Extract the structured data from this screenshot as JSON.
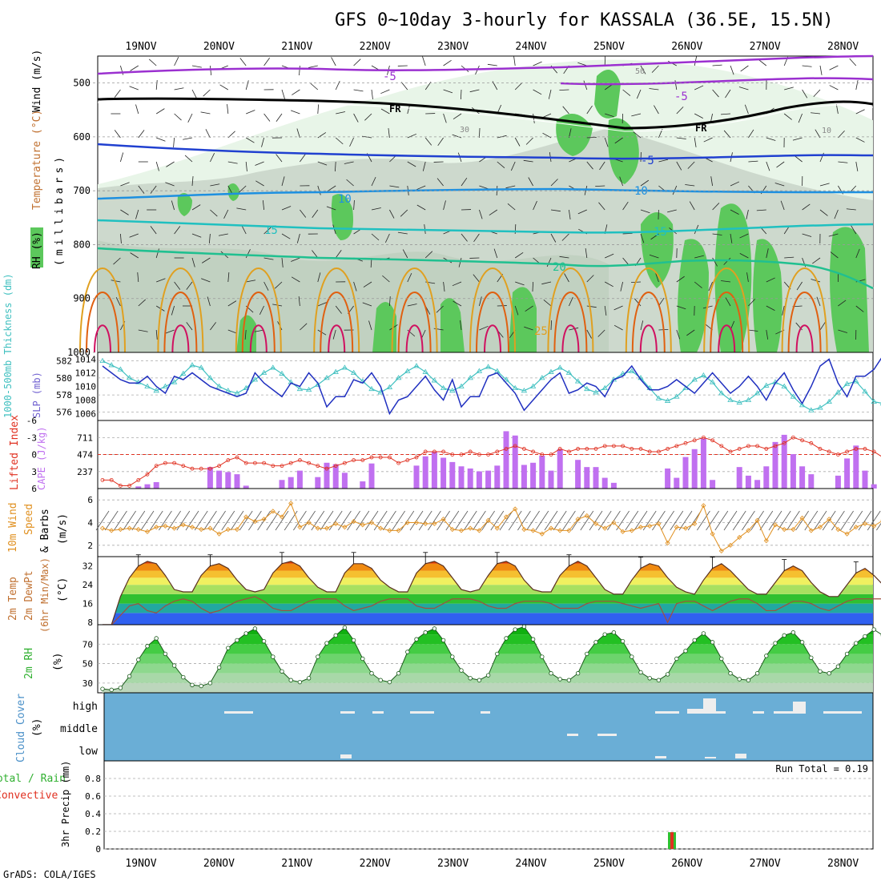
{
  "title": "GFS 0~10day 3-hourly for KASSALA (36.5E, 15.5N)",
  "footer": "GrADS: COLA/IGES",
  "dates": [
    "19NOV",
    "20NOV",
    "21NOV",
    "22NOV",
    "23NOV",
    "24NOV",
    "25NOV",
    "26NOV",
    "27NOV",
    "28NOV"
  ],
  "panels": {
    "upper": {
      "labels": {
        "rh": "RH (%)",
        "temp": "Temperature (°C)",
        "wind": "Wind (m/s)",
        "unit": "(millibars)"
      },
      "yticks": [
        "500",
        "600",
        "700",
        "800",
        "900",
        "1000"
      ],
      "contour_labels": {
        "m5a": "-5",
        "m5b": "-5",
        "fra": "FR",
        "frb": "FR",
        "m5c": "-5",
        "p10a": "10",
        "p10b": "10",
        "p15a": "15",
        "p15b": "15",
        "p20": "20",
        "p25": "25",
        "rh50": "50",
        "rh30": "30",
        "rh10": "10"
      },
      "colors": {
        "rh_light": "#e8f5e8",
        "rh_mid": "#c8d8c8",
        "rh_green": "#5cc85c",
        "t_m5": "#9b30d0",
        "t_fr": "#000000",
        "t_m5c": "#2040d0",
        "t_10": "#1e90e0",
        "t_15": "#20c0c0",
        "t_20": "#20c090",
        "t_25": "#e0a020",
        "t_30": "#e06010",
        "t_35": "#d01060"
      }
    },
    "thickness": {
      "labels": {
        "thickness": "1000-500mb Thickness (dm)",
        "slp": "SLP (mb)"
      },
      "left_ticks": [
        "582",
        "580",
        "578",
        "576"
      ],
      "right_ticks": [
        "1014",
        "1012",
        "1010",
        "1008",
        "1006"
      ],
      "colors": {
        "thickness": "#40c0c0",
        "slp": "#2030c0"
      }
    },
    "cape": {
      "labels": {
        "li": "Lifted Index",
        "cape": "CAPE (J/kg)"
      },
      "left_ticks": [
        "-6",
        "-3",
        "0",
        "3",
        "6"
      ],
      "right_ticks": [
        "711",
        "474",
        "237"
      ],
      "colors": {
        "cape": "#c070f0",
        "li": "#e03020"
      }
    },
    "wind10": {
      "labels": {
        "a": "10m Wind",
        "b": "Speed",
        "c": "& Barbs",
        "unit": "(m/s)"
      },
      "yticks": [
        "6",
        "4",
        "2"
      ],
      "colors": {
        "speed": "#e09020"
      }
    },
    "temp2m": {
      "labels": {
        "a": "2m Temp",
        "b": "2m DewPt",
        "c": "(6hr Min/Max)",
        "unit": "(°C)"
      },
      "yticks": [
        "32",
        "24",
        "16",
        "8"
      ]
    },
    "rh2m": {
      "labels": {
        "a": "2m RH",
        "unit": "(%)"
      },
      "yticks": [
        "70",
        "50",
        "30"
      ]
    },
    "cloud": {
      "labels": {
        "a": "Cloud Cover",
        "unit": "(%)"
      },
      "levels": [
        "high",
        "middle",
        "low"
      ],
      "colors": {
        "bg": "#6aaed6"
      }
    },
    "precip": {
      "labels": {
        "a": "Total / Rain",
        "b": "Convective",
        "c": "3hr Precip (mm)"
      },
      "yticks": [
        "0.8",
        "0.6",
        "0.4",
        "0.2",
        "0"
      ],
      "run_total": "Run Total = 0.19"
    }
  },
  "chart_data": [
    {
      "type": "line",
      "title": "1000-500mb Thickness / SLP",
      "x_start": "18NOV 15Z",
      "step_hours": 3,
      "series": [
        {
          "name": "1000-500mb Thickness (dm)",
          "values": [
            582,
            581.5,
            581,
            580,
            579.5,
            579,
            578.5,
            579,
            579.5,
            580.5,
            581.5,
            581.2,
            580,
            579,
            578.5,
            578.2,
            578.8,
            579.8,
            580.6,
            581.2,
            580.5,
            579.5,
            578.7,
            578.6,
            579.2,
            580,
            580.7,
            581.2,
            580.6,
            579.6,
            578.7,
            578.3,
            578.9,
            580,
            580.8,
            581.4,
            580.7,
            579.7,
            578.8,
            578.5,
            579,
            580,
            580.8,
            581.3,
            580.8,
            579.8,
            578.8,
            578.5,
            579,
            580,
            580.7,
            581.2,
            580.6,
            579.6,
            578.7,
            578.3,
            578.8,
            579.8,
            580.5,
            580.8,
            580,
            578.8,
            577.6,
            577.3,
            577.8,
            578.8,
            579.8,
            580.3,
            579.5,
            578.2,
            577.4,
            577.1,
            577.4,
            578.2,
            579.1,
            579.5,
            579,
            577.8,
            576.8,
            576.2,
            576.5,
            577.2,
            578.3,
            579.3,
            579.6,
            578.4,
            577.2,
            577
          ]
        },
        {
          "name": "SLP (mb)",
          "values": [
            1013,
            1012,
            1011,
            1010.5,
            1010.5,
            1011.5,
            1010,
            1009,
            1011.5,
            1011,
            1012,
            1011,
            1010,
            1009.5,
            1009,
            1008.5,
            1009,
            1012,
            1010.5,
            1009.5,
            1008.5,
            1010.5,
            1010,
            1012,
            1010.5,
            1007,
            1008.5,
            1008.5,
            1011,
            1010.5,
            1012,
            1010,
            1006,
            1008,
            1008.5,
            1010,
            1011.5,
            1009.5,
            1008,
            1011,
            1007,
            1008.5,
            1008.5,
            1011.5,
            1012,
            1010.5,
            1009,
            1006.5,
            1008,
            1009.5,
            1011,
            1012,
            1009,
            1009.5,
            1010.5,
            1010,
            1008.5,
            1011,
            1011.5,
            1013,
            1011,
            1009.5,
            1009.5,
            1010,
            1011,
            1010,
            1009,
            1010.5,
            1012,
            1010.5,
            1009,
            1010,
            1011.5,
            1010,
            1008,
            1010.5,
            1012,
            1009.5,
            1007.5,
            1010,
            1013,
            1014,
            1010.5,
            1008.5,
            1011.5,
            1011.5,
            1012.5,
            1014.5
          ]
        }
      ],
      "ylim_thickness": [
        575,
        583
      ],
      "ylim_slp": [
        1005,
        1015
      ]
    },
    {
      "type": "bar",
      "title": "CAPE (J/kg) / Lifted Index",
      "x_start": "18NOV 15Z",
      "step_hours": 3,
      "series": [
        {
          "name": "CAPE (J/kg)",
          "values": [
            0,
            0,
            0,
            0,
            30,
            60,
            90,
            0,
            0,
            0,
            0,
            0,
            300,
            250,
            230,
            200,
            40,
            0,
            0,
            0,
            120,
            160,
            250,
            0,
            160,
            360,
            340,
            220,
            0,
            100,
            350,
            0,
            0,
            0,
            0,
            320,
            450,
            520,
            430,
            370,
            310,
            280,
            240,
            250,
            320,
            800,
            740,
            330,
            360,
            460,
            250,
            550,
            0,
            400,
            300,
            300,
            150,
            80,
            0,
            0,
            0,
            0,
            0,
            280,
            150,
            440,
            550,
            700,
            120,
            0,
            0,
            300,
            180,
            120,
            310,
            650,
            750,
            480,
            310,
            200,
            0,
            0,
            180,
            420,
            600,
            250,
            60,
            0
          ],
          "ylim": [
            0,
            950
          ]
        },
        {
          "name": "Lifted Index",
          "values": [
            4.5,
            4.5,
            5.5,
            5.5,
            4.5,
            3.5,
            2,
            1.5,
            1.5,
            2,
            2.5,
            2.5,
            2.5,
            2,
            1,
            0.5,
            1.5,
            1.5,
            1.5,
            2,
            2,
            1.5,
            1,
            1.5,
            2,
            2.5,
            2,
            1.5,
            1,
            1,
            0.5,
            0.5,
            0.5,
            1.5,
            1,
            0.5,
            -0.5,
            -0.5,
            -0.5,
            0,
            0,
            -0.5,
            0,
            0,
            -0.5,
            -1,
            -1.5,
            -1,
            -0.5,
            0,
            0,
            -1,
            -0.5,
            -1,
            -1,
            -1,
            -1.5,
            -1.5,
            -1.5,
            -1,
            -1,
            -0.5,
            -0.5,
            -1,
            -1.5,
            -2,
            -2.5,
            -3,
            -2.5,
            -1.5,
            -0.5,
            -1,
            -1.5,
            -1.5,
            -1,
            -1.5,
            -2,
            -3,
            -2.5,
            -2,
            -1,
            -0.5,
            0,
            -0.5,
            -1,
            -1,
            -0.5,
            0.5
          ],
          "ylim": [
            6,
            -6
          ]
        }
      ]
    },
    {
      "type": "line",
      "title": "10m Wind Speed (m/s)",
      "x_start": "18NOV 15Z",
      "step_hours": 3,
      "series": [
        {
          "name": "10m Wind Speed",
          "values": [
            3.5,
            3.3,
            3.4,
            3.5,
            3.4,
            3.2,
            3.6,
            3.7,
            3.5,
            3.8,
            3.6,
            3.4,
            3.5,
            3,
            3.4,
            3.4,
            4.5,
            4.1,
            4.3,
            5,
            4.5,
            5.7,
            3.6,
            4,
            3.5,
            3.5,
            3.9,
            3.6,
            4.1,
            3.8,
            4,
            3.5,
            3.3,
            3.3,
            4,
            4,
            3.9,
            3.9,
            4.3,
            3.4,
            3.3,
            3.5,
            3.3,
            4.2,
            3.5,
            4.5,
            5.2,
            3.4,
            3.3,
            3,
            3.5,
            3.3,
            3.3,
            4.3,
            4.6,
            3.9,
            3.5,
            4,
            3.2,
            3.3,
            3.6,
            3.7,
            3.9,
            2.2,
            3.6,
            3.5,
            3.9,
            5.5,
            3,
            1.5,
            2,
            2.7,
            3.3,
            4.2,
            2.4,
            3.8,
            3.4,
            3.4,
            4.4,
            3.3,
            3.6,
            4.3,
            3.4,
            3,
            3.6,
            3.9,
            3.7,
            4.2
          ]
        }
      ],
      "ylim": [
        1,
        7
      ]
    },
    {
      "type": "area",
      "title": "2m Temp / DewPt (°C)",
      "x_start": "18NOV 15Z",
      "step_hours": 3,
      "series": [
        {
          "name": "2m Temp",
          "values": [
            7,
            7,
            19,
            27,
            32,
            34,
            33,
            28,
            22,
            21,
            21,
            28,
            32,
            33,
            31,
            26,
            22,
            21,
            22,
            29,
            33,
            34,
            32,
            27,
            23,
            21,
            21,
            29,
            33,
            33,
            31,
            26,
            23,
            21,
            21,
            29,
            33,
            34,
            32,
            27,
            22,
            21,
            22,
            28,
            33,
            34,
            32,
            26,
            22,
            21,
            21,
            28,
            32,
            34,
            32,
            27,
            22,
            20,
            20,
            26,
            31,
            33,
            32,
            27,
            23,
            21,
            20,
            26,
            31,
            33,
            30,
            26,
            22,
            20,
            20,
            25,
            30,
            32,
            30,
            25,
            21,
            19,
            19,
            24,
            29,
            31,
            28,
            24
          ]
        },
        {
          "name": "2m DewPt",
          "values": [
            7,
            7,
            11,
            15,
            16,
            13,
            12,
            15,
            17,
            18,
            17,
            14,
            12,
            13,
            15,
            17,
            18,
            19,
            17,
            14,
            13,
            13,
            15,
            17,
            18,
            18,
            18,
            15,
            13,
            14,
            15,
            17,
            18,
            18,
            18,
            15,
            14,
            14,
            16,
            18,
            18,
            18,
            17,
            15,
            14,
            14,
            16,
            17,
            17,
            17,
            16,
            14,
            14,
            14,
            16,
            17,
            17,
            17,
            16,
            15,
            14,
            15,
            16,
            8,
            16,
            17,
            17,
            15,
            13,
            15,
            17,
            18,
            18,
            16,
            13,
            13,
            15,
            17,
            17,
            16,
            14,
            13,
            15,
            17,
            18,
            18,
            18,
            18
          ]
        }
      ],
      "ylim": [
        7,
        36
      ]
    },
    {
      "type": "area",
      "title": "2m RH (%)",
      "x_start": "18NOV 15Z",
      "step_hours": 3,
      "series": [
        {
          "name": "2m RH",
          "values": [
            24,
            23,
            25,
            37,
            54,
            68,
            76,
            60,
            48,
            36,
            28,
            27,
            30,
            46,
            66,
            74,
            81,
            86,
            73,
            57,
            42,
            33,
            31,
            35,
            57,
            71,
            79,
            87,
            74,
            55,
            40,
            33,
            31,
            40,
            62,
            75,
            82,
            86,
            74,
            57,
            43,
            35,
            33,
            38,
            60,
            76,
            85,
            88,
            75,
            57,
            40,
            34,
            33,
            40,
            60,
            72,
            80,
            82,
            73,
            57,
            41,
            35,
            33,
            39,
            55,
            63,
            74,
            81,
            72,
            55,
            40,
            34,
            33,
            40,
            58,
            71,
            79,
            82,
            72,
            56,
            42,
            40,
            47,
            60,
            71,
            78,
            85,
            79
          ]
        }
      ],
      "ylim": [
        20,
        90
      ]
    },
    {
      "type": "bar",
      "title": "3hr Precip (mm)",
      "categories": [
        "25NOV 18Z"
      ],
      "series": [
        {
          "name": "Total / Rain",
          "values": [
            0.19
          ]
        },
        {
          "name": "Convective",
          "values": [
            0.19
          ]
        }
      ],
      "ylim": [
        0,
        1.0
      ]
    }
  ]
}
